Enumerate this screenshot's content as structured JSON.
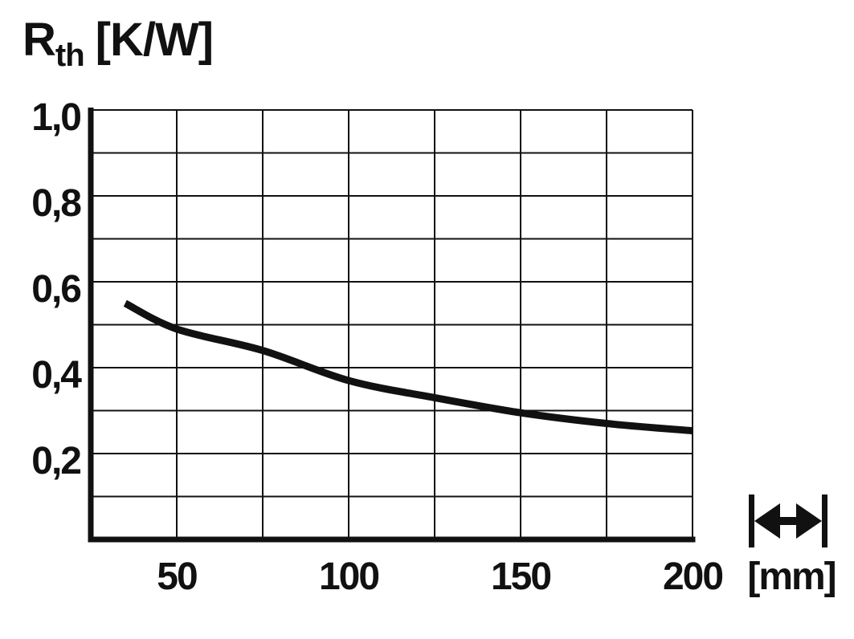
{
  "colors": {
    "ink": "#111111",
    "background": "#ffffff"
  },
  "chart_data": {
    "type": "line",
    "title": {
      "base": "R",
      "subscript": "th",
      "units": "[K/W]"
    },
    "x_axis": {
      "unit_label": "[mm]",
      "range": [
        25,
        200
      ],
      "gridline_step": 25,
      "ticks": [
        {
          "value": 50,
          "label": "50"
        },
        {
          "value": 100,
          "label": "100"
        },
        {
          "value": 150,
          "label": "150"
        },
        {
          "value": 200,
          "label": "200"
        }
      ]
    },
    "y_axis": {
      "range": [
        0,
        1.0
      ],
      "gridline_step": 0.1,
      "ticks": [
        {
          "value": 1.0,
          "label": "1,0"
        },
        {
          "value": 0.8,
          "label": "0,8"
        },
        {
          "value": 0.6,
          "label": "0,6"
        },
        {
          "value": 0.4,
          "label": "0,4"
        },
        {
          "value": 0.2,
          "label": "0,2"
        }
      ]
    },
    "grid": true,
    "legend": false,
    "series": [
      {
        "name": "thermal-resistance-vs-length",
        "color": "#111111",
        "points": [
          [
            35,
            0.55
          ],
          [
            50,
            0.49
          ],
          [
            75,
            0.44
          ],
          [
            100,
            0.37
          ],
          [
            125,
            0.33
          ],
          [
            150,
            0.295
          ],
          [
            175,
            0.27
          ],
          [
            200,
            0.253
          ]
        ]
      }
    ],
    "annotations": [
      {
        "type": "icon",
        "name": "length-dimension-arrow"
      }
    ]
  }
}
